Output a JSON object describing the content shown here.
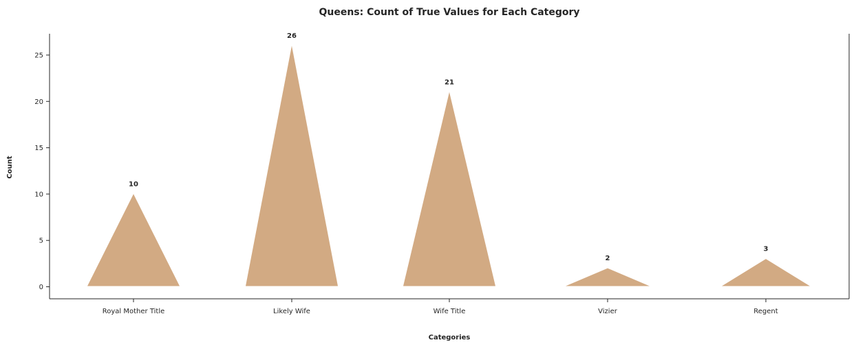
{
  "chart_data": {
    "type": "bar",
    "bar_shape": "triangle",
    "title": "Queens: Count of True Values for Each Category",
    "xlabel": "Categories",
    "ylabel": "Count",
    "categories": [
      "Royal Mother Title",
      "Likely Wife",
      "Wife Title",
      "Vizier",
      "Regent"
    ],
    "values": [
      10,
      26,
      21,
      2,
      3
    ],
    "data_labels": [
      "10",
      "26",
      "21",
      "2",
      "3"
    ],
    "yticks": [
      0,
      5,
      10,
      15,
      20,
      25
    ],
    "ylim": [
      -1.3,
      27.3
    ],
    "grid": false,
    "legend": "none",
    "bar_color": "#d2aa83"
  }
}
